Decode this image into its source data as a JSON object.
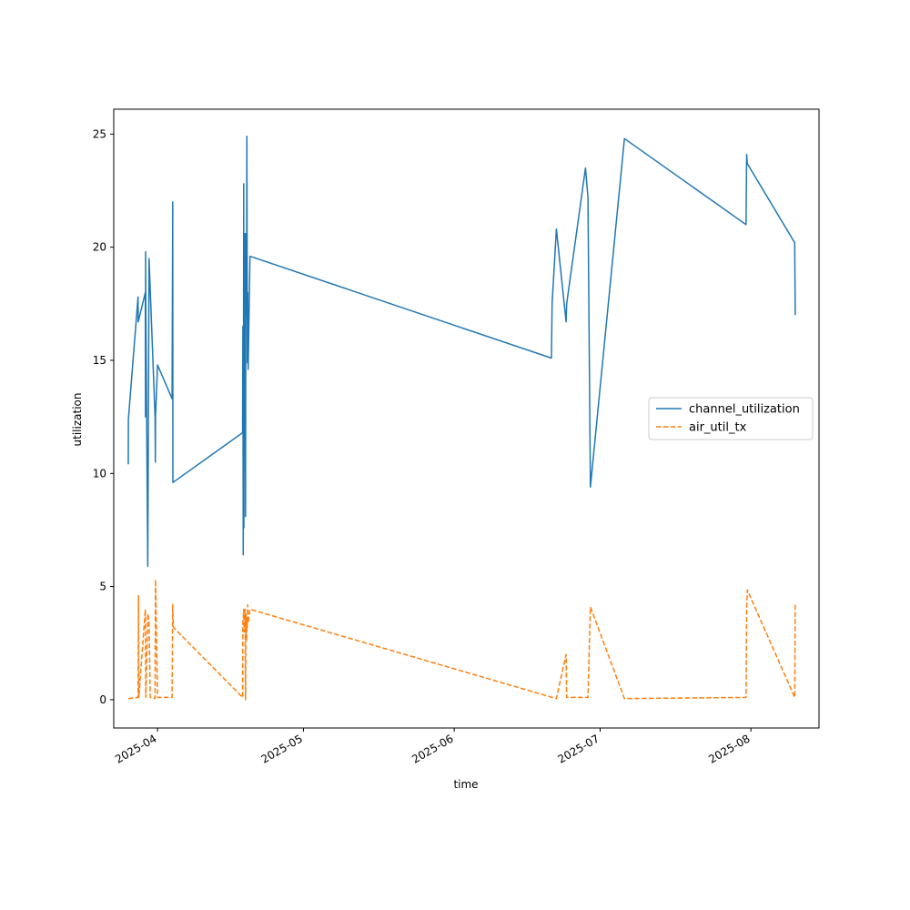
{
  "chart_data": {
    "type": "line",
    "title": "",
    "xlabel": "time",
    "ylabel": "utilization",
    "x_ticks": [
      "2025-04",
      "2025-05",
      "2025-06",
      "2025-07",
      "2025-08"
    ],
    "y_ticks": [
      0,
      5,
      10,
      15,
      20,
      25
    ],
    "xlim": [
      "2025-03-23",
      "2025-08-15"
    ],
    "ylim": [
      -1.25,
      26.1
    ],
    "grid": false,
    "legend_position": "center-right",
    "series": [
      {
        "name": "channel_utilization",
        "color": "#1f77b4",
        "style": "solid",
        "points": [
          [
            "2025-03-26 00:00",
            10.4
          ],
          [
            "2025-03-26 00:30",
            12.4
          ],
          [
            "2025-03-28 00:00",
            17.8
          ],
          [
            "2025-03-28 01:00",
            16.7
          ],
          [
            "2025-03-29 12:00",
            18.0
          ],
          [
            "2025-03-29 12:30",
            12.5
          ],
          [
            "2025-03-29 13:00",
            19.8
          ],
          [
            "2025-03-29 14:00",
            17.5
          ],
          [
            "2025-03-30 00:00",
            5.9
          ],
          [
            "2025-03-30 06:00",
            19.5
          ],
          [
            "2025-03-31 12:00",
            12.5
          ],
          [
            "2025-03-31 13:00",
            10.5
          ],
          [
            "2025-03-31 14:00",
            12.5
          ],
          [
            "2025-04-01 00:00",
            14.8
          ],
          [
            "2025-04-04 00:00",
            13.3
          ],
          [
            "2025-04-04 03:00",
            22.0
          ],
          [
            "2025-04-04 04:00",
            9.6
          ],
          [
            "2025-04-18 12:00",
            11.8
          ],
          [
            "2025-04-18 13:00",
            16.5
          ],
          [
            "2025-04-18 15:00",
            6.4
          ],
          [
            "2025-04-18 17:00",
            22.8
          ],
          [
            "2025-04-18 18:00",
            7.6
          ],
          [
            "2025-04-18 20:00",
            17.0
          ],
          [
            "2025-04-19 00:00",
            20.6
          ],
          [
            "2025-04-19 02:00",
            8.1
          ],
          [
            "2025-04-19 04:00",
            20.6
          ],
          [
            "2025-04-19 07:00",
            17.0
          ],
          [
            "2025-04-19 09:00",
            24.9
          ],
          [
            "2025-04-19 11:00",
            14.9
          ],
          [
            "2025-04-19 13:00",
            18.0
          ],
          [
            "2025-04-19 15:00",
            14.6
          ],
          [
            "2025-04-20 00:00",
            19.6
          ],
          [
            "2025-06-21 00:00",
            15.1
          ],
          [
            "2025-06-21 03:00",
            17.5
          ],
          [
            "2025-06-22 00:00",
            20.8
          ],
          [
            "2025-06-24 00:00",
            16.7
          ],
          [
            "2025-06-24 03:00",
            17.5
          ],
          [
            "2025-06-28 00:00",
            23.5
          ],
          [
            "2025-06-28 12:00",
            22.2
          ],
          [
            "2025-06-29 00:00",
            9.4
          ],
          [
            "2025-07-06 00:00",
            24.8
          ],
          [
            "2025-07-31 00:00",
            21.0
          ],
          [
            "2025-07-31 03:00",
            24.1
          ],
          [
            "2025-07-31 06:00",
            23.7
          ],
          [
            "2025-08-10 00:00",
            20.2
          ],
          [
            "2025-08-10 03:00",
            17.0
          ]
        ]
      },
      {
        "name": "air_util_tx",
        "color": "#ff7f0e",
        "style": "dashed",
        "points": [
          [
            "2025-03-26 00:00",
            0.05
          ],
          [
            "2025-03-28 00:00",
            0.1
          ],
          [
            "2025-03-28 02:00",
            4.6
          ],
          [
            "2025-03-28 04:00",
            0.1
          ],
          [
            "2025-03-29 12:00",
            4.0
          ],
          [
            "2025-03-29 14:00",
            0.1
          ],
          [
            "2025-03-30 00:00",
            3.8
          ],
          [
            "2025-03-30 06:00",
            3.4
          ],
          [
            "2025-03-30 12:00",
            0.1
          ],
          [
            "2025-03-31 12:00",
            0.05
          ],
          [
            "2025-03-31 14:00",
            5.3
          ],
          [
            "2025-04-01 00:00",
            0.1
          ],
          [
            "2025-04-04 00:00",
            0.1
          ],
          [
            "2025-04-04 03:00",
            4.2
          ],
          [
            "2025-04-04 06:00",
            3.2
          ],
          [
            "2025-04-18 12:00",
            0.1
          ],
          [
            "2025-04-18 13:00",
            3.4
          ],
          [
            "2025-04-18 15:00",
            3.6
          ],
          [
            "2025-04-18 17:00",
            4.0
          ],
          [
            "2025-04-18 20:00",
            3.0
          ],
          [
            "2025-04-19 00:00",
            4.0
          ],
          [
            "2025-04-19 02:00",
            0.0
          ],
          [
            "2025-04-19 04:00",
            3.8
          ],
          [
            "2025-04-19 07:00",
            2.6
          ],
          [
            "2025-04-19 09:00",
            3.6
          ],
          [
            "2025-04-19 11:00",
            3.2
          ],
          [
            "2025-04-19 13:00",
            4.2
          ],
          [
            "2025-04-19 15:00",
            3.4
          ],
          [
            "2025-04-20 00:00",
            4.0
          ],
          [
            "2025-06-22 00:00",
            0.05
          ],
          [
            "2025-06-24 00:00",
            2.0
          ],
          [
            "2025-06-24 03:00",
            0.1
          ],
          [
            "2025-06-28 12:00",
            0.1
          ],
          [
            "2025-06-29 00:00",
            4.1
          ],
          [
            "2025-07-06 00:00",
            0.05
          ],
          [
            "2025-07-31 00:00",
            0.1
          ],
          [
            "2025-07-31 03:00",
            4.0
          ],
          [
            "2025-07-31 06:00",
            4.85
          ],
          [
            "2025-08-10 00:00",
            0.1
          ],
          [
            "2025-08-10 03:00",
            4.3
          ]
        ]
      }
    ]
  }
}
